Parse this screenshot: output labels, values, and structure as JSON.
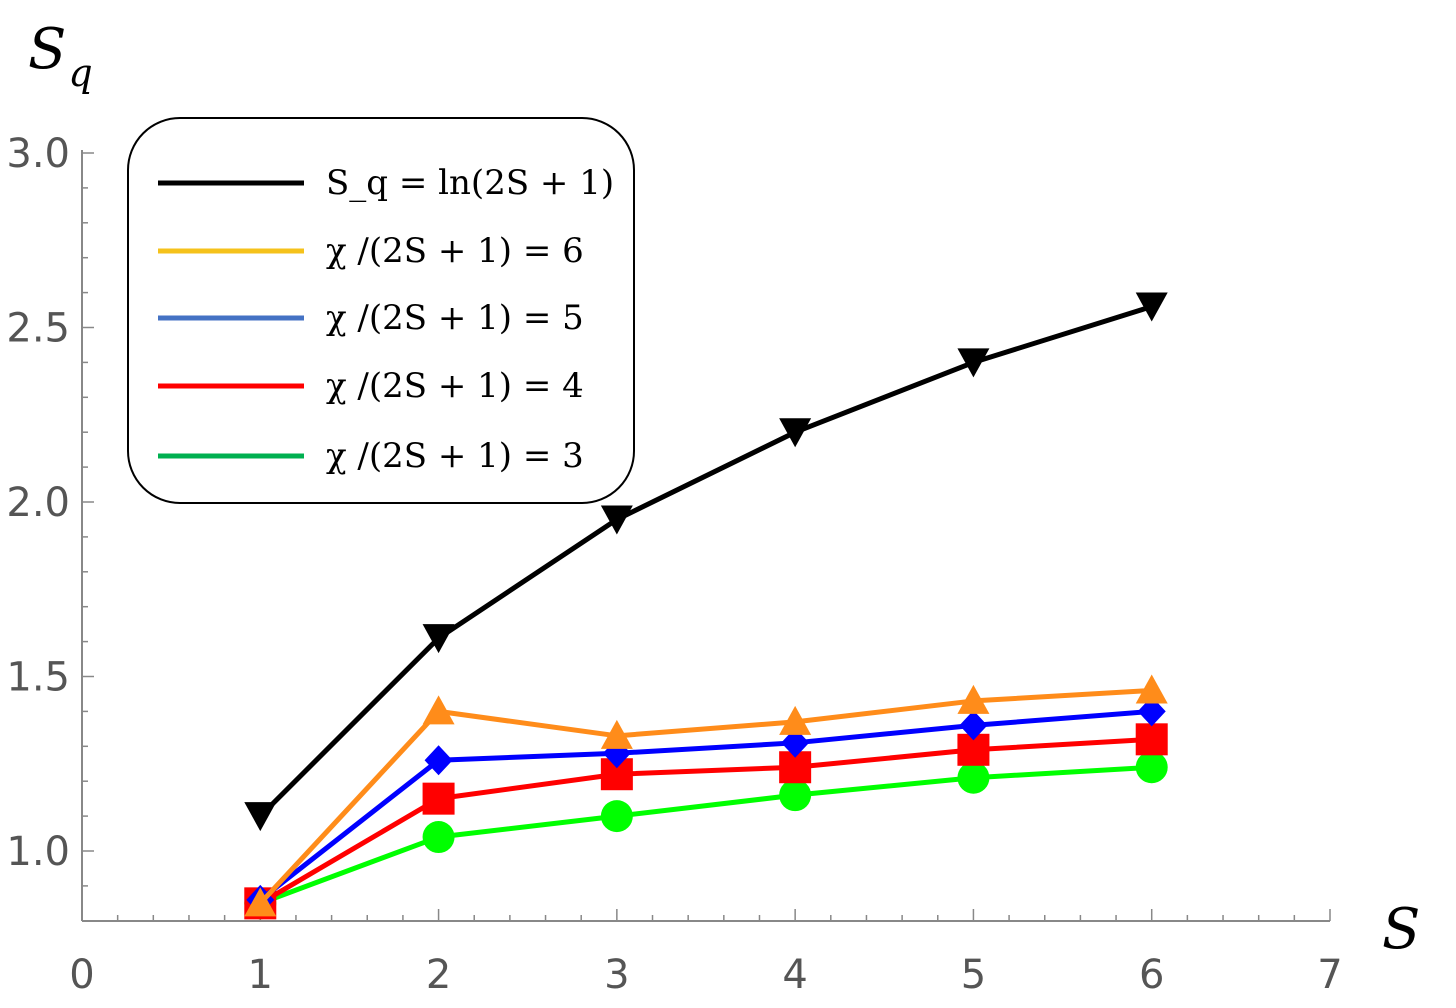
{
  "chart_data": {
    "type": "line",
    "xlabel": "S",
    "ylabel": {
      "main": "S",
      "sub": "q"
    },
    "xlim": [
      0,
      7
    ],
    "ylim": [
      0.8,
      3.0
    ],
    "xticks": [
      "0",
      "1",
      "2",
      "3",
      "4",
      "5",
      "6",
      "7"
    ],
    "yticks": [
      "1.0",
      "1.5",
      "2.0",
      "2.5",
      "3.0"
    ],
    "legend_position": "top-left",
    "x": [
      1,
      2,
      3,
      4,
      5,
      6
    ],
    "series": [
      {
        "legend": "S_q = ln(2S + 1)",
        "legend_line_color": "#000000",
        "color": "#000000",
        "marker": "triangle-down",
        "values": [
          1.1,
          1.61,
          1.95,
          2.2,
          2.4,
          2.56
        ]
      },
      {
        "legend": "χ /(2S + 1) = 6",
        "legend_line_color": "#f5c21b",
        "color": "#ff8c1a",
        "marker": "triangle-up",
        "values": [
          0.85,
          1.4,
          1.33,
          1.37,
          1.43,
          1.46
        ]
      },
      {
        "legend": "χ /(2S + 1) = 5",
        "legend_line_color": "#4472c4",
        "color": "#0000ff",
        "marker": "diamond",
        "values": [
          0.86,
          1.26,
          1.28,
          1.31,
          1.36,
          1.4
        ]
      },
      {
        "legend": "χ /(2S + 1) = 4",
        "legend_line_color": "#ff0000",
        "color": "#ff0000",
        "marker": "square",
        "values": [
          0.85,
          1.15,
          1.22,
          1.24,
          1.29,
          1.32
        ]
      },
      {
        "legend": "χ /(2S + 1) = 3",
        "legend_line_color": "#00b050",
        "color": "#00ff00",
        "marker": "circle",
        "values": [
          0.85,
          1.04,
          1.1,
          1.16,
          1.21,
          1.24
        ]
      }
    ]
  }
}
